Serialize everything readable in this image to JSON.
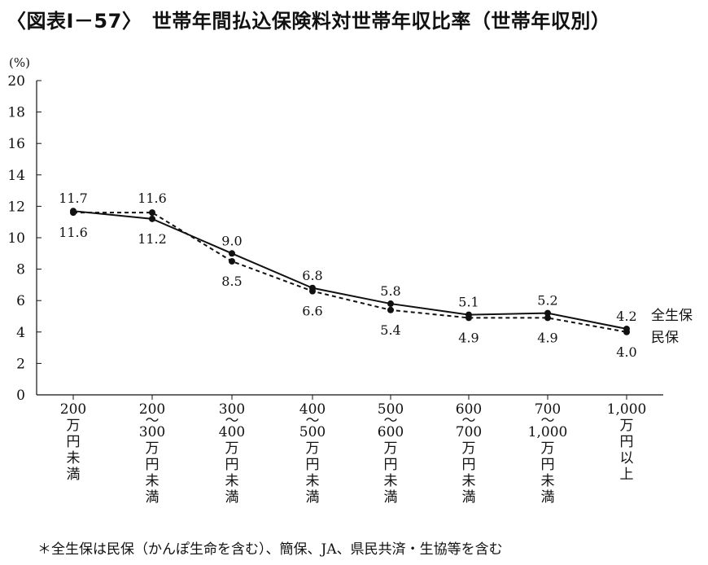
{
  "title": "〈図表Ⅰ－57〉　世帯年間払込保険料対世帯年収比率（世帯年収別）",
  "footnote": "＊全生保は民保（かんぽ生命を含む）、簡保、JA、県民共済・生協等を含む",
  "chart_data": {
    "type": "line",
    "title": "〈図表Ⅰ－57〉　世帯年間払込保険料対世帯年収比率（世帯年収別）",
    "ylabel": "(%)",
    "xlabel": "",
    "ylim": [
      0,
      20
    ],
    "yticks": [
      "0",
      "2",
      "4",
      "6",
      "8",
      "10",
      "12",
      "14",
      "16",
      "18",
      "20"
    ],
    "categories": [
      [
        "200",
        "万",
        "円",
        "未",
        "満"
      ],
      [
        "200",
        "～",
        "300",
        "万",
        "円",
        "未",
        "満"
      ],
      [
        "300",
        "～",
        "400",
        "万",
        "円",
        "未",
        "満"
      ],
      [
        "400",
        "～",
        "500",
        "万",
        "円",
        "未",
        "満"
      ],
      [
        "500",
        "～",
        "600",
        "万",
        "円",
        "未",
        "満"
      ],
      [
        "600",
        "～",
        "700",
        "万",
        "円",
        "未",
        "満"
      ],
      [
        "700",
        "～",
        "1,000",
        "万",
        "円",
        "未",
        "満"
      ],
      [
        "1,000",
        "万",
        "円",
        "以",
        "上"
      ]
    ],
    "series": [
      {
        "name": "全生保",
        "style": "solid",
        "values": [
          11.7,
          11.2,
          9.0,
          6.8,
          5.8,
          5.1,
          5.2,
          4.2
        ],
        "labels": [
          "11.7",
          "11.2",
          "9.0",
          "6.8",
          "5.8",
          "5.1",
          "5.2",
          "4.2"
        ]
      },
      {
        "name": "民保",
        "style": "dashed",
        "values": [
          11.6,
          11.6,
          8.5,
          6.6,
          5.4,
          4.9,
          4.9,
          4.0
        ],
        "labels": [
          "11.6",
          "11.6",
          "8.5",
          "6.6",
          "5.4",
          "4.9",
          "4.9",
          "4.0"
        ]
      }
    ],
    "grid": false,
    "legend": "right, at line ends",
    "colors": {
      "line": "#111111",
      "background": "#ffffff"
    }
  }
}
